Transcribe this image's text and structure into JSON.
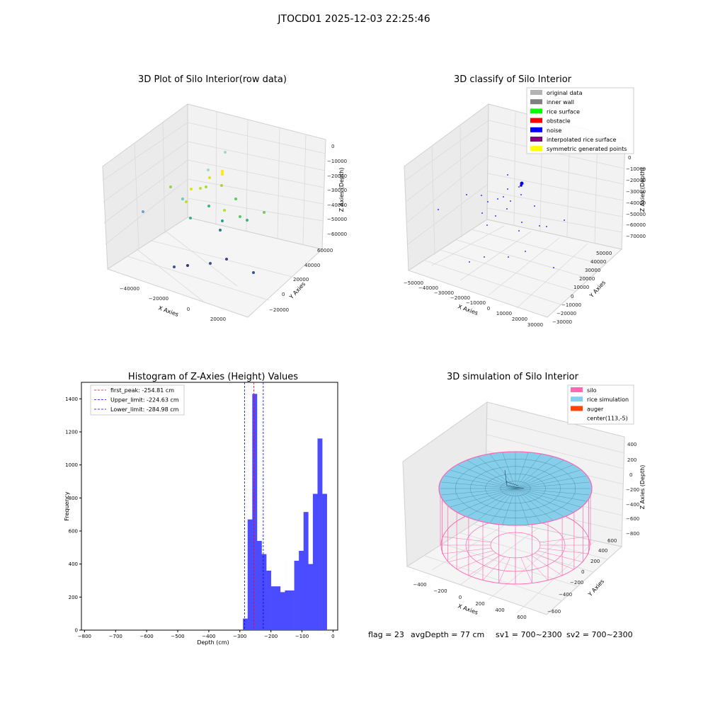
{
  "suptitle": "JTOCD01 2025-12-03 22:25:46",
  "footer": {
    "flag": "flag = 23",
    "avg": "avgDepth = 77 cm",
    "sv1": "sv1 = 700~2300",
    "sv2": "sv2 = 700~2300"
  },
  "chart_data": [
    {
      "type": "scatter",
      "title": "3D Plot of Silo Interior(row data)",
      "xlabel": "X Axies",
      "ylabel": "Y Axies",
      "zlabel": "Z Axies (Depth)",
      "xticks": [
        "−40000",
        "−20000",
        "0",
        "20000"
      ],
      "yticks": [
        "−20000",
        "0",
        "20000",
        "40000",
        "60000"
      ],
      "zticks": [
        "0",
        "−10000",
        "−20000",
        "−30000",
        "−40000",
        "−50000",
        "−60000"
      ],
      "colormap": "viridis"
    },
    {
      "type": "scatter",
      "title": "3D classify of Silo Interior",
      "xlabel": "X Axies",
      "ylabel": "Y Axies",
      "zlabel": "Z Axies (Depth)",
      "xticks": [
        "−50000",
        "−40000",
        "−30000",
        "−20000",
        "−10000",
        "0",
        "10000",
        "20000",
        "30000"
      ],
      "yticks": [
        "−30000",
        "−20000",
        "−10000",
        "0",
        "10000",
        "20000",
        "30000",
        "40000",
        "50000"
      ],
      "zticks": [
        "10000",
        "0",
        "−10000",
        "−20000",
        "−30000",
        "−40000",
        "−50000",
        "−60000",
        "−70000"
      ],
      "legend": [
        {
          "label": "original data",
          "color": "#b3b3b3"
        },
        {
          "label": "inner wall",
          "color": "#808080"
        },
        {
          "label": "rice surface",
          "color": "#00ff00"
        },
        {
          "label": "obstacle",
          "color": "#ff0000"
        },
        {
          "label": "noise",
          "color": "#0000ff"
        },
        {
          "label": "interpolated rice surface",
          "color": "#800080"
        },
        {
          "label": "symmetric generated points",
          "color": "#ffff00"
        }
      ],
      "legend_position": "upper right"
    },
    {
      "type": "bar",
      "title": "Histogram of Z-Axies (Height) Values",
      "xlabel": "Depth (cm)",
      "ylabel": "Frequency",
      "xlim": [
        -810,
        15
      ],
      "ylim": [
        0,
        1500
      ],
      "xticks": [
        -800,
        -700,
        -600,
        -500,
        -400,
        -300,
        -200,
        -100,
        0
      ],
      "yticks": [
        0,
        200,
        400,
        600,
        800,
        1000,
        1200,
        1400
      ],
      "bin_width": 15,
      "bins": [
        {
          "x": -290,
          "y": 70
        },
        {
          "x": -275,
          "y": 670
        },
        {
          "x": -260,
          "y": 1430
        },
        {
          "x": -245,
          "y": 540
        },
        {
          "x": -230,
          "y": 460
        },
        {
          "x": -215,
          "y": 360
        },
        {
          "x": -200,
          "y": 265
        },
        {
          "x": -185,
          "y": 265
        },
        {
          "x": -170,
          "y": 230
        },
        {
          "x": -155,
          "y": 240
        },
        {
          "x": -140,
          "y": 240
        },
        {
          "x": -125,
          "y": 420
        },
        {
          "x": -110,
          "y": 480
        },
        {
          "x": -95,
          "y": 715
        },
        {
          "x": -80,
          "y": 400
        },
        {
          "x": -65,
          "y": 825
        },
        {
          "x": -50,
          "y": 1160
        },
        {
          "x": -35,
          "y": 825
        }
      ],
      "bar_color": "#4b4bff",
      "lines": [
        {
          "label": "first_peak: -254.81 cm",
          "x": -254.81,
          "color": "#ff0000"
        },
        {
          "label": "Upper_limit: -224.63 cm",
          "x": -224.63,
          "color": "#0000ff"
        },
        {
          "label": "Lower_limit: -284.98 cm",
          "x": -284.98,
          "color": "#0000ff"
        }
      ],
      "legend_position": "upper left"
    },
    {
      "type": "surface",
      "title": "3D simulation of Silo Interior",
      "xlabel": "X Axies",
      "ylabel": "Y Axies",
      "zlabel": "Z Axies (Depth)",
      "xticks": [
        "−400",
        "−200",
        "0",
        "200",
        "400",
        "600"
      ],
      "yticks": [
        "−600",
        "−400",
        "−200",
        "0",
        "200",
        "400",
        "600"
      ],
      "zticks": [
        "400",
        "200",
        "0",
        "−200",
        "−400",
        "−600",
        "−800"
      ],
      "legend": [
        {
          "label": "silo",
          "color": "#ff69b4"
        },
        {
          "label": "rice simulation",
          "color": "#87ceeb"
        },
        {
          "label": "auger",
          "color": "#ff4500"
        },
        {
          "label": "center(113,-5)",
          "color": ""
        }
      ],
      "legend_position": "upper right"
    }
  ]
}
